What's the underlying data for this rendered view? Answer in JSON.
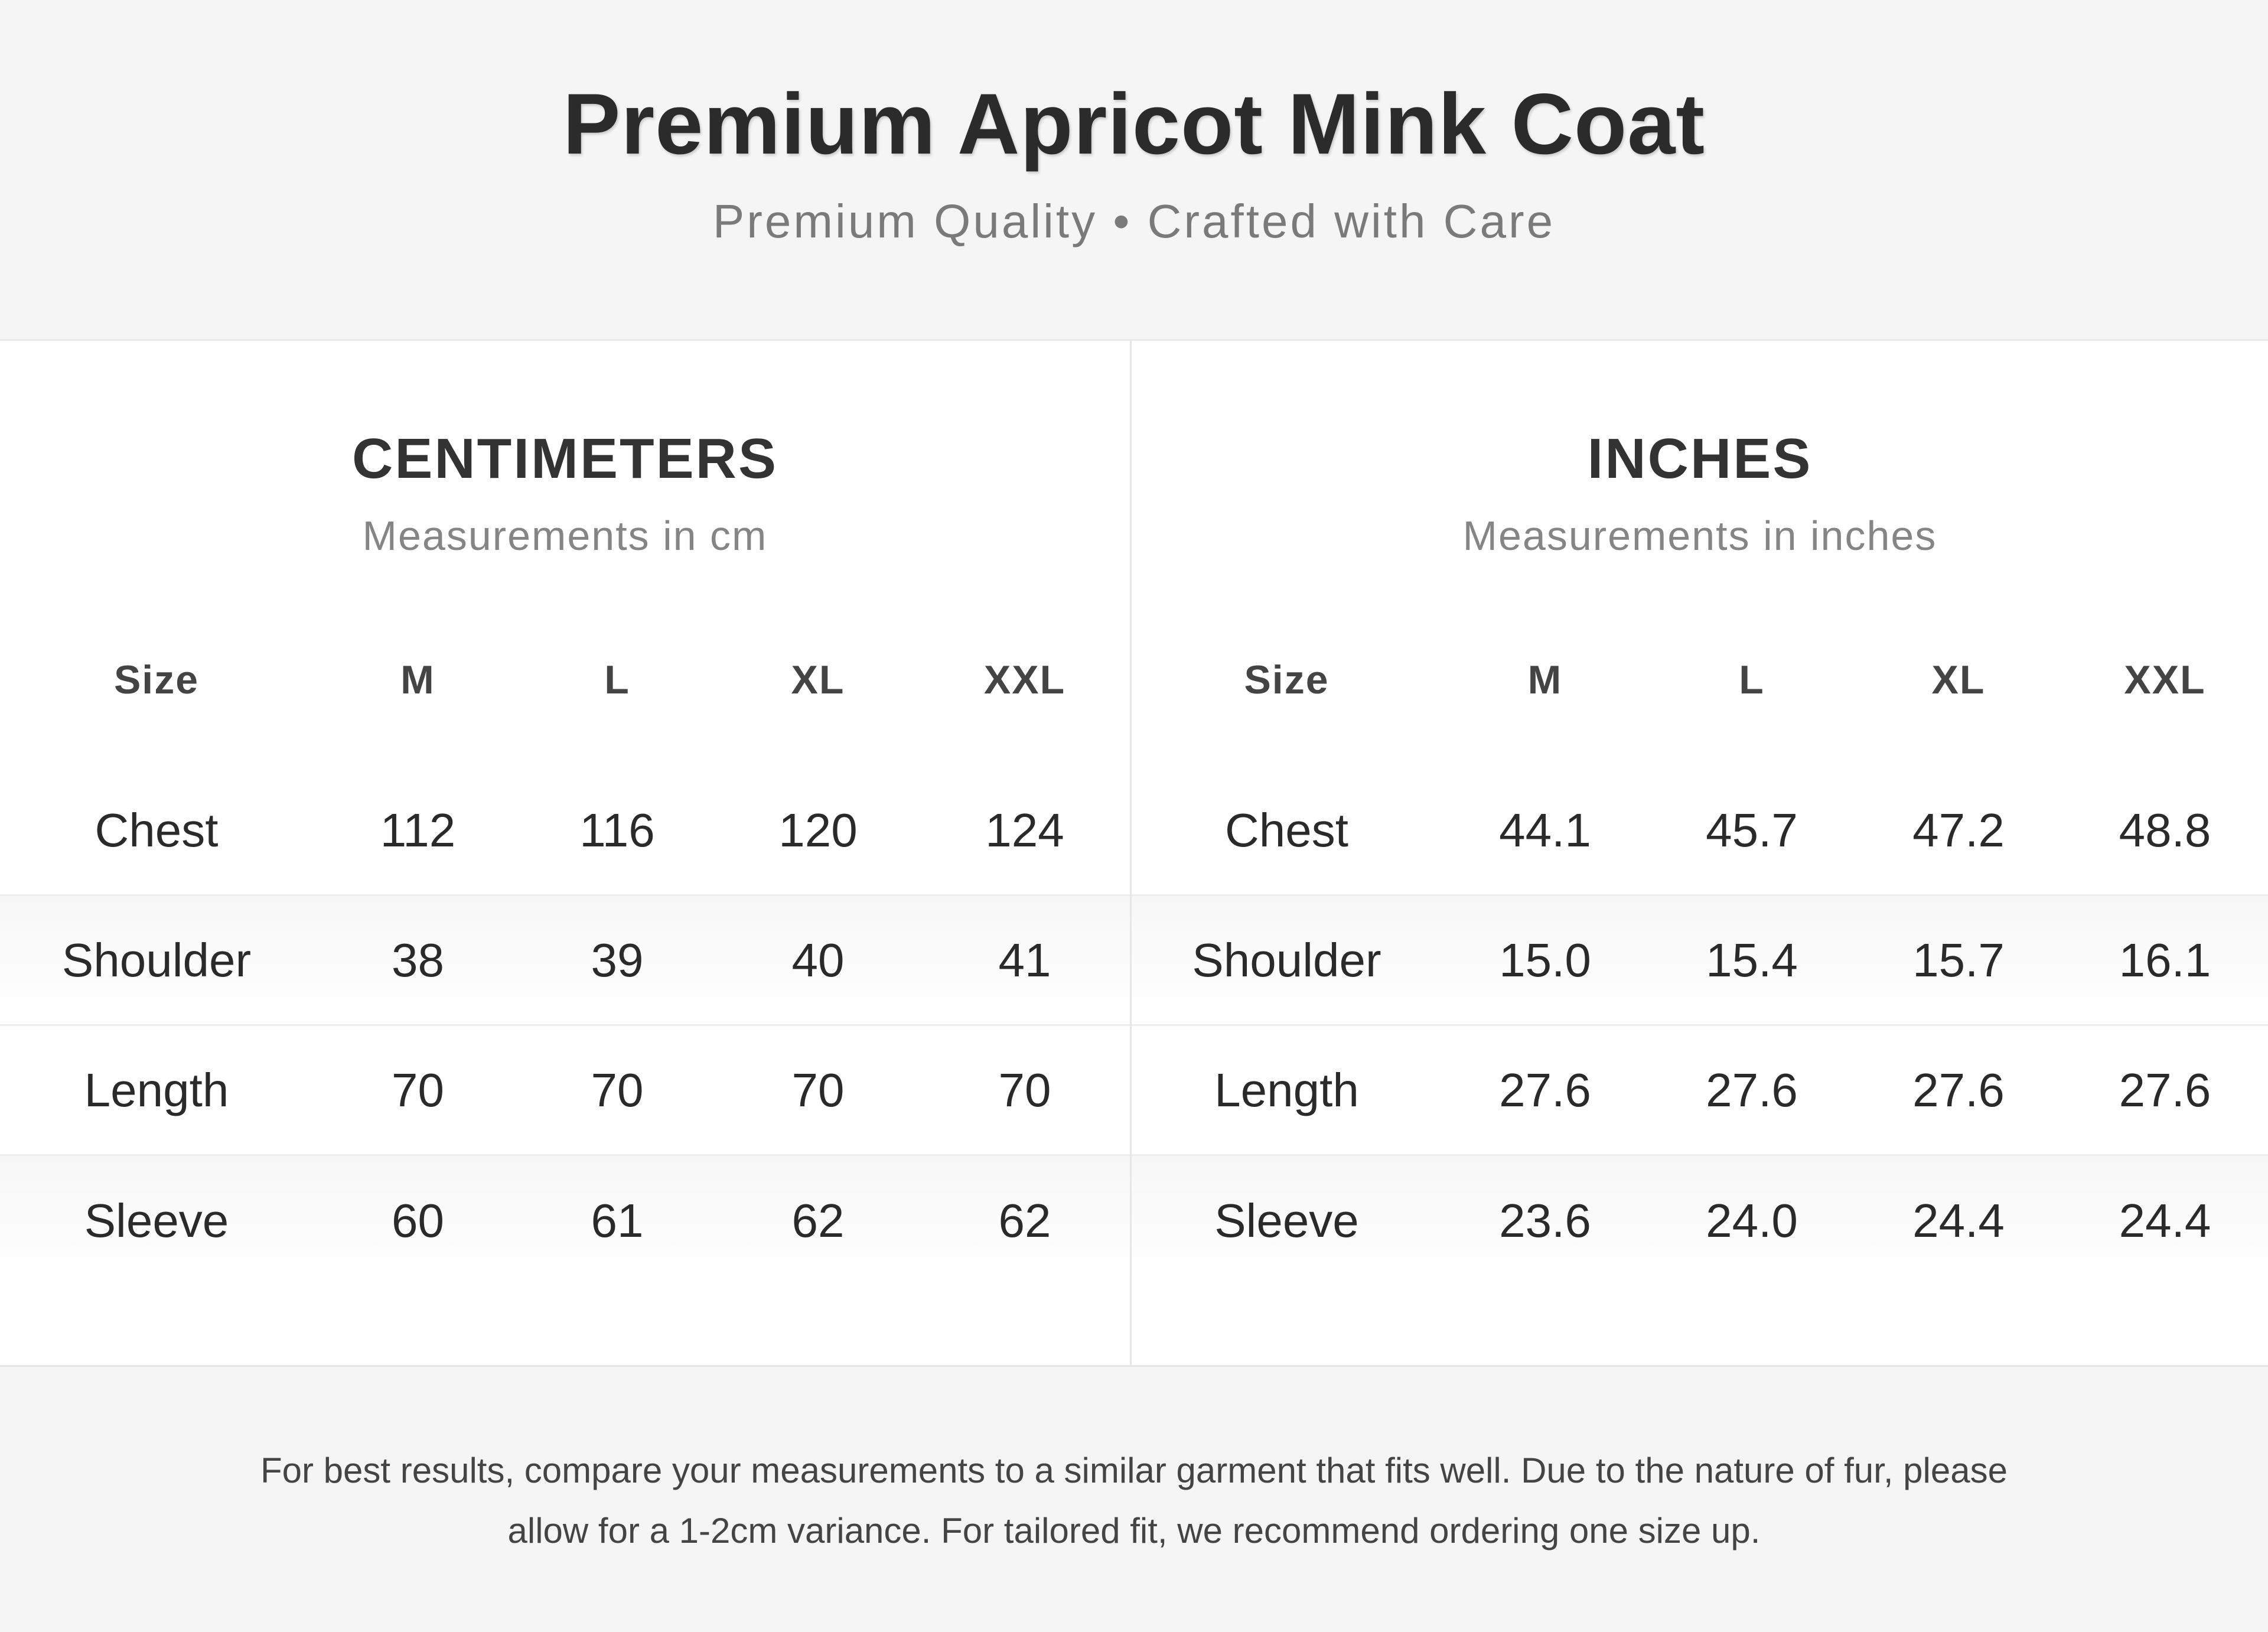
{
  "header": {
    "title": "Premium Apricot Mink Coat",
    "subtitle": "Premium Quality • Crafted with Care"
  },
  "centimeters": {
    "title": "CENTIMETERS",
    "subtitle": "Measurements in cm",
    "columns": [
      "Size",
      "M",
      "L",
      "XL",
      "XXL"
    ],
    "rows": [
      {
        "label": "Chest",
        "values": [
          "112",
          "116",
          "120",
          "124"
        ]
      },
      {
        "label": "Shoulder",
        "values": [
          "38",
          "39",
          "40",
          "41"
        ]
      },
      {
        "label": "Length",
        "values": [
          "70",
          "70",
          "70",
          "70"
        ]
      },
      {
        "label": "Sleeve",
        "values": [
          "60",
          "61",
          "62",
          "62"
        ]
      }
    ]
  },
  "inches": {
    "title": "INCHES",
    "subtitle": "Measurements in inches",
    "columns": [
      "Size",
      "M",
      "L",
      "XL",
      "XXL"
    ],
    "rows": [
      {
        "label": "Chest",
        "values": [
          "44.1",
          "45.7",
          "47.2",
          "48.8"
        ]
      },
      {
        "label": "Shoulder",
        "values": [
          "15.0",
          "15.4",
          "15.7",
          "16.1"
        ]
      },
      {
        "label": "Length",
        "values": [
          "27.6",
          "27.6",
          "27.6",
          "27.6"
        ]
      },
      {
        "label": "Sleeve",
        "values": [
          "23.6",
          "24.0",
          "24.4",
          "24.4"
        ]
      }
    ]
  },
  "footer": {
    "note": "For best results, compare your measurements to a similar garment that fits well. Due to the nature of fur, please allow for a 1-2cm variance. For tailored fit, we recommend ordering one size up."
  }
}
